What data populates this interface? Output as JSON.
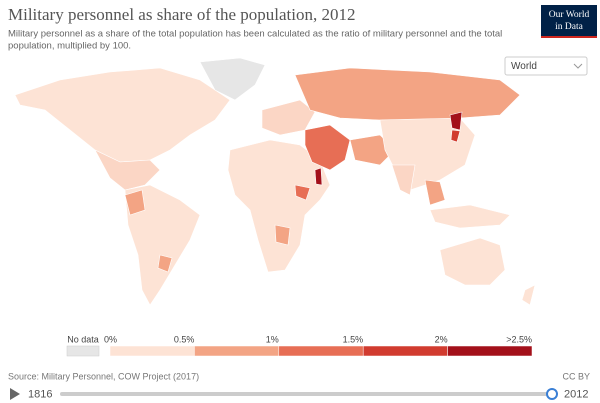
{
  "header": {
    "title": "Military personnel as share of the population, 2012",
    "subtitle": [
      "Military personnel as a share of the total population has been calculated as the ratio of military personnel and the total",
      "population, multiplied by 100."
    ],
    "logo": [
      "Our World",
      "in Data"
    ]
  },
  "region_select": "World",
  "legend": {
    "no_data": {
      "label": "No data",
      "color": "#e6e6e6"
    },
    "ticks": [
      "0%",
      "0.5%",
      "1%",
      "1.5%",
      "2%",
      ">2.5%"
    ],
    "colors": [
      "#fde3d5",
      "#f3a484",
      "#e76e55",
      "#d13b2f",
      "#a3101a"
    ]
  },
  "footer": {
    "source": "Source: Military Personnel, COW Project (2017)",
    "license": "CC BY"
  },
  "timeline": {
    "start": "1816",
    "end": "2012"
  }
}
